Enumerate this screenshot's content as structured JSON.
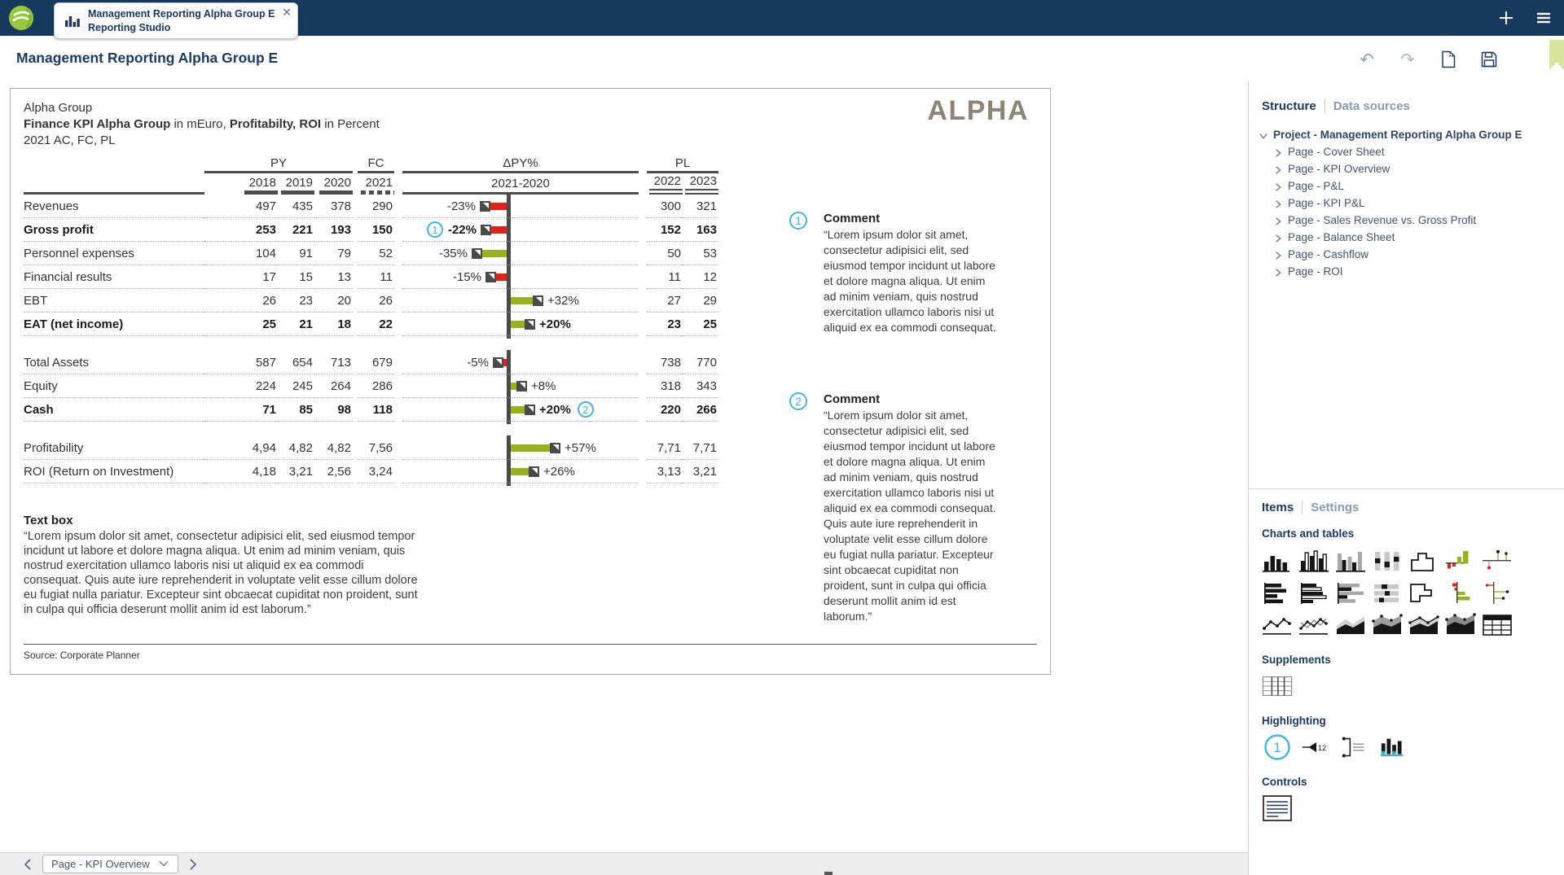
{
  "topbar": {
    "tab": {
      "line1": "Management Reporting Alpha Group E",
      "line2": "Reporting Studio"
    }
  },
  "toolbar": {
    "page_title": "Management Reporting Alpha Group E"
  },
  "colors": {
    "positive": "#97b21c",
    "negative": "#e2231a",
    "accent": "#41b6e6",
    "navy": "#1b3a63"
  },
  "report": {
    "title_line1": "Alpha Group",
    "title_bold1": "Finance KPI Alpha Group",
    "title_reg1": " in mEuro, ",
    "title_bold2": "Profitabilty, ROI",
    "title_reg2": " in Percent",
    "title_line3": "2021 AC, FC, PL",
    "brand_logo": "ALPHA",
    "source": "Source: Corporate Planner",
    "textbox": {
      "heading": "Text box",
      "body": "“Lorem ipsum dolor sit amet, consectetur adipisici elit, sed eiusmod tempor incidunt ut labore et dolore magna aliqua. Ut enim ad minim veniam, quis nostrud exercitation ullamco laboris nisi ut aliquid ex ea commodi consequat. Quis aute iure reprehenderit in voluptate velit esse cillum dolore eu fugiat nulla pariatur. Excepteur sint obcaecat cupiditat non proident, sunt in culpa qui officia deserunt mollit anim id est laborum.”"
    },
    "comments": [
      {
        "num": "1",
        "title": "Comment",
        "body": "“Lorem ipsum dolor sit amet, consectetur adipisici elit, sed eiusmod tempor incidunt ut labore et dolore magna aliqua. Ut enim ad minim veniam, quis nostrud exercitation ullamco laboris nisi ut aliquid ex ea commodi consequat."
      },
      {
        "num": "2",
        "title": "Comment",
        "body": "“Lorem ipsum dolor sit amet, consectetur adipisici elit, sed eiusmod tempor incidunt ut labore et dolore magna aliqua. Ut enim ad minim veniam, quis nostrud exercitation ullamco laboris nisi ut aliquid ex ea commodi consequat. Quis aute iure reprehenderit in voluptate velit esse cillum dolore eu fugiat nulla pariatur. Excepteur sint obcaecat cupiditat non proident, sunt in culpa qui officia deserunt mollit anim id est laborum.”"
      }
    ],
    "table": {
      "col_groups": {
        "py": "PY",
        "fc": "FC",
        "delta": "ΔPY%",
        "pl": "PL"
      },
      "py_years": [
        "2018",
        "2019",
        "2020"
      ],
      "fc_year": "2021",
      "delta_span": "2021-2020",
      "pl_years": [
        "2022",
        "2023"
      ],
      "groups": [
        [
          {
            "label": "Revenues",
            "bold": false,
            "py": [
              "497",
              "435",
              "378"
            ],
            "fc": "290",
            "delta": {
              "pct": -23,
              "label": "-23%",
              "good": false
            },
            "pl": [
              "300",
              "321"
            ]
          },
          {
            "label": "Gross profit",
            "bold": true,
            "py": [
              "253",
              "221",
              "193"
            ],
            "fc": "150",
            "delta": {
              "pct": -22,
              "label": "-22%",
              "good": false
            },
            "badge": "1",
            "badge_pos": "before",
            "pl": [
              "152",
              "163"
            ]
          },
          {
            "label": "Personnel expenses",
            "bold": false,
            "py": [
              "104",
              "91",
              "79"
            ],
            "fc": "52",
            "delta": {
              "pct": -35,
              "label": "-35%",
              "good": true
            },
            "pl": [
              "50",
              "53"
            ]
          },
          {
            "label": "Financial results",
            "bold": false,
            "py": [
              "17",
              "15",
              "13"
            ],
            "fc": "11",
            "delta": {
              "pct": -15,
              "label": "-15%",
              "good": false
            },
            "pl": [
              "11",
              "12"
            ]
          },
          {
            "label": "EBT",
            "bold": false,
            "py": [
              "26",
              "23",
              "20"
            ],
            "fc": "26",
            "delta": {
              "pct": 32,
              "label": "+32%",
              "good": true
            },
            "pl": [
              "27",
              "29"
            ]
          },
          {
            "label": "EAT (net income)",
            "bold": true,
            "py": [
              "25",
              "21",
              "18"
            ],
            "fc": "22",
            "delta": {
              "pct": 20,
              "label": "+20%",
              "good": true
            },
            "pl": [
              "23",
              "25"
            ]
          }
        ],
        [
          {
            "label": "Total Assets",
            "bold": false,
            "py": [
              "587",
              "654",
              "713"
            ],
            "fc": "679",
            "delta": {
              "pct": -5,
              "label": "-5%",
              "good": false
            },
            "pl": [
              "738",
              "770"
            ]
          },
          {
            "label": "Equity",
            "bold": false,
            "py": [
              "224",
              "245",
              "264"
            ],
            "fc": "286",
            "delta": {
              "pct": 8,
              "label": "+8%",
              "good": true
            },
            "pl": [
              "318",
              "343"
            ]
          },
          {
            "label": "Cash",
            "bold": true,
            "py": [
              "71",
              "85",
              "98"
            ],
            "fc": "118",
            "delta": {
              "pct": 20,
              "label": "+20%",
              "good": true
            },
            "badge": "2",
            "badge_pos": "after",
            "pl": [
              "220",
              "266"
            ]
          }
        ],
        [
          {
            "label": "Profitability",
            "bold": false,
            "py": [
              "4,94",
              "4,82",
              "4,82"
            ],
            "fc": "7,56",
            "delta": {
              "pct": 57,
              "label": "+57%",
              "good": true
            },
            "pl": [
              "7,71",
              "7,71"
            ]
          },
          {
            "label": "ROI (Return on Investment)",
            "bold": false,
            "py": [
              "4,18",
              "3,21",
              "2,56"
            ],
            "fc": "3,24",
            "delta": {
              "pct": 26,
              "label": "+26%",
              "good": true
            },
            "pl": [
              "3,13",
              "3,21"
            ]
          }
        ]
      ]
    }
  },
  "sidebar": {
    "tabs": {
      "structure": "Structure",
      "data_sources": "Data sources"
    },
    "tree": {
      "root": "Project - Management Reporting Alpha Group E",
      "pages": [
        "Page - Cover Sheet",
        "Page - KPI Overview",
        "Page - P&L",
        "Page - KPI P&L",
        "Page - Sales Revenue vs. Gross Profit",
        "Page - Balance Sheet",
        "Page - Cashflow",
        "Page - ROI"
      ]
    }
  },
  "items_panel": {
    "tabs": {
      "items": "Items",
      "settings": "Settings"
    },
    "sections": {
      "charts": "Charts and tables",
      "supplements": "Supplements",
      "highlighting": "Highlighting",
      "controls": "Controls"
    },
    "chart_icons": [
      "column-chart",
      "grouped-column-chart",
      "column-comparison-chart",
      "stacked-column-chart",
      "stepped-column-outline-chart",
      "waterfall-column-chart",
      "pin-column-chart",
      "bar-chart",
      "grouped-bar-chart",
      "bar-comparison-chart",
      "stacked-bar-chart",
      "stepped-bar-outline-chart",
      "waterfall-bar-chart",
      "pin-bar-chart",
      "line-chart",
      "multi-line-chart",
      "area-chart",
      "stacked-area-chart",
      "area-line-chart",
      "stacked-area-gray-chart",
      "table-item"
    ],
    "supplement_icons": [
      "data-table-supplement"
    ],
    "highlight_icons": [
      "circled-number-highlight",
      "arrow-value-highlight",
      "comment-annotation-highlight",
      "chart-highlight"
    ],
    "control_icons": [
      "text-control"
    ],
    "highlight_badge_number": "1",
    "highlight_arrow_value": "12"
  },
  "bottombar": {
    "page_selector": "Page - KPI Overview"
  }
}
